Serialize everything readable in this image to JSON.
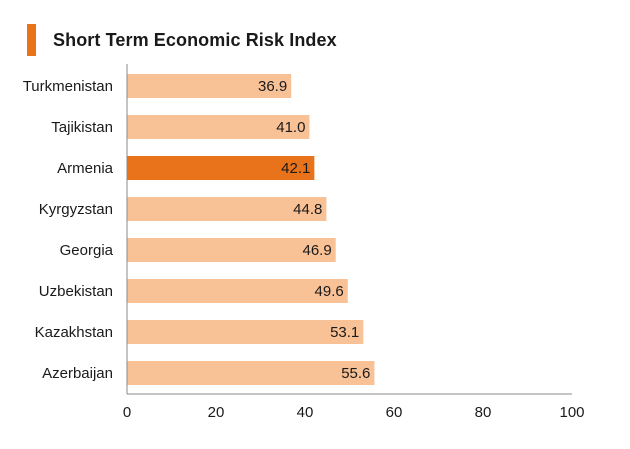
{
  "colors": {
    "accent": "#E8731A",
    "bar_default": "#F9C196",
    "bar_highlight": "#E8731A",
    "axis": "#8a8a8a"
  },
  "chart_data": {
    "type": "bar",
    "orientation": "horizontal",
    "title": "Short Term Economic Risk Index",
    "categories": [
      "Turkmenistan",
      "Tajikistan",
      "Armenia",
      "Kyrgyzstan",
      "Georgia",
      "Uzbekistan",
      "Kazakhstan",
      "Azerbaijan"
    ],
    "values": [
      36.9,
      41.0,
      42.1,
      44.8,
      46.9,
      49.6,
      53.1,
      55.6
    ],
    "value_labels": [
      "36.9",
      "41.0",
      "42.1",
      "44.8",
      "46.9",
      "49.6",
      "53.1",
      "55.6"
    ],
    "highlight": "Armenia",
    "xlim": [
      0,
      100
    ],
    "xticks": [
      0,
      20,
      40,
      60,
      80,
      100
    ],
    "xlabel": "",
    "ylabel": "",
    "grid": false,
    "legend": "none"
  }
}
